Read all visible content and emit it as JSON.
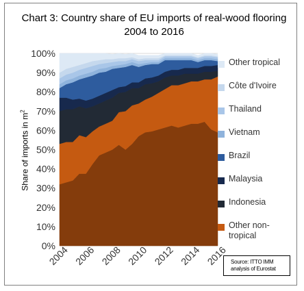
{
  "chart_data": {
    "type": "area",
    "stacked": true,
    "title": "Chart 3:  Country share of EU imports of real-wood flooring 2004 to 2016",
    "ylabel_text": "Share of imports in m",
    "ylabel_sup": "2",
    "xlabel": "",
    "ylim": [
      0,
      100
    ],
    "yticks": [
      "0%",
      "10%",
      "20%",
      "30%",
      "40%",
      "50%",
      "60%",
      "70%",
      "80%",
      "90%",
      "100%"
    ],
    "xticks": [
      "2004",
      "2006",
      "2008",
      "2010",
      "2012",
      "2014",
      "2016"
    ],
    "xlim": [
      2004,
      2016
    ],
    "grid": true,
    "legend_position": "right",
    "source_line1": "Source: ITTO IMM",
    "source_line2": "analysis of Eurostat",
    "x": [
      2004,
      2004.5,
      2005,
      2005.5,
      2006,
      2006.5,
      2007,
      2007.5,
      2008,
      2008.5,
      2009,
      2009.5,
      2010,
      2010.5,
      2011,
      2011.5,
      2012,
      2012.5,
      2013,
      2013.5,
      2014,
      2014.5,
      2015,
      2015.5,
      2016
    ],
    "series": [
      {
        "name": "Other tropical",
        "color": "#dde9f5",
        "values": [
          10,
          8,
          7,
          6,
          5,
          4,
          3.5,
          3,
          2.5,
          2.5,
          2,
          2,
          2,
          1.5,
          1.5,
          1.5,
          1,
          1,
          1,
          1,
          1,
          1,
          1,
          1,
          1
        ]
      },
      {
        "name": "Côte d'Ivoire",
        "color": "#c5d8ed",
        "values": [
          3,
          3,
          3,
          2.5,
          2.5,
          2.5,
          2,
          2,
          1.5,
          1.5,
          1.5,
          1,
          1,
          1,
          1,
          1,
          0.5,
          0.5,
          0.5,
          0.5,
          0.5,
          0.5,
          0.5,
          0.5,
          0.5
        ]
      },
      {
        "name": "Thailand",
        "color": "#a9c6e8",
        "values": [
          3,
          3,
          3,
          3,
          3,
          3,
          2.5,
          2.5,
          2,
          2,
          1.5,
          1.5,
          1.5,
          1.5,
          1,
          1,
          1,
          1,
          1,
          1,
          1,
          1,
          1,
          1,
          1
        ]
      },
      {
        "name": "Vietnam",
        "color": "#8fb3dc",
        "values": [
          2,
          2,
          2,
          2,
          2,
          2,
          2,
          2,
          1.5,
          1.5,
          1.5,
          1.5,
          1.5,
          1,
          1,
          1,
          1,
          1,
          1,
          1,
          1,
          1,
          1,
          1,
          1
        ]
      },
      {
        "name": "Brazil",
        "color": "#2e5c9e",
        "values": [
          5,
          7,
          9,
          10,
          12,
          12,
          12,
          11,
          11,
          10,
          10,
          9,
          8,
          7,
          7,
          6,
          6,
          5,
          5,
          4,
          4,
          3,
          3,
          3,
          2
        ]
      },
      {
        "name": "Malaysia",
        "color": "#17294d",
        "values": [
          7,
          6,
          5,
          4,
          4,
          4,
          4,
          4,
          4,
          3,
          3,
          3,
          3,
          3,
          3,
          3,
          3,
          3,
          3,
          3,
          3,
          3,
          3,
          3,
          3
        ]
      },
      {
        "name": "Indonesia",
        "color": "#222a35",
        "values": [
          17,
          17,
          17,
          15,
          15,
          13,
          12,
          12,
          12,
          10,
          10,
          9,
          8,
          8,
          7,
          6,
          6,
          5,
          5,
          5,
          4,
          4,
          4,
          4,
          3
        ]
      },
      {
        "name": "Other non-\ntropical",
        "color": "#c55a11",
        "values": [
          21,
          21,
          20,
          20,
          19,
          17,
          15,
          15,
          15,
          17,
          20,
          20,
          17,
          17,
          18,
          19,
          20,
          21,
          22,
          22,
          22,
          22,
          22,
          26,
          29
        ]
      },
      {
        "name": "",
        "color": "#843c0c",
        "values": [
          32,
          33,
          34,
          37.5,
          37.5,
          42.5,
          47,
          48.5,
          50,
          52.5,
          50,
          53,
          57,
          59,
          59.5,
          60.5,
          61.5,
          62.5,
          61.5,
          62.5,
          63.5,
          63.5,
          64.5,
          60.5,
          59
        ]
      }
    ]
  }
}
